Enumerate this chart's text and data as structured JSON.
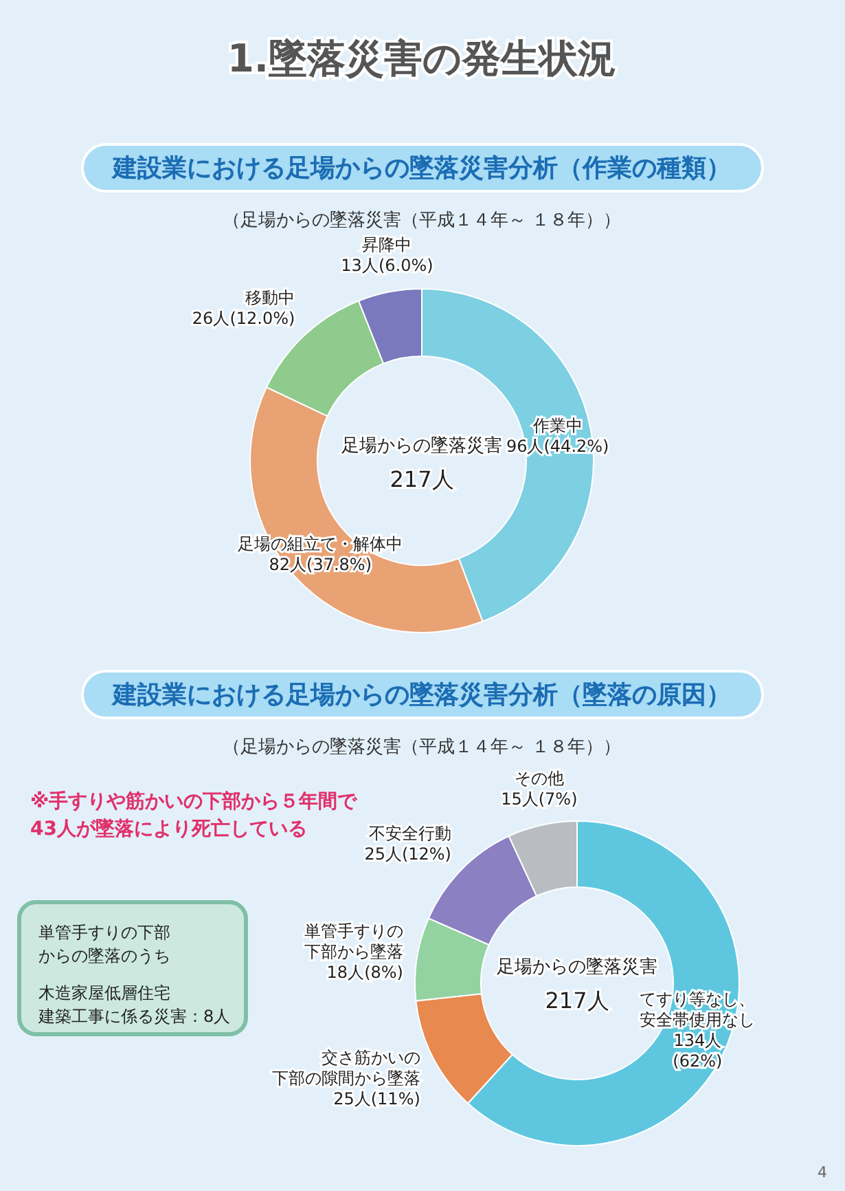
{
  "chart_data": [
    {
      "type": "donut",
      "title": "建設業における足場からの墜落災害分析（作業の種類）",
      "subtitle": "（足場からの墜落災害（平成１４年～ １８年））",
      "categories": [
        "作業中",
        "足場の組立て・解体中",
        "移動中",
        "昇降中"
      ],
      "values": [
        96,
        82,
        26,
        13
      ],
      "colors": [
        "#7dcfe2",
        "#e8a274",
        "#8ecb8c",
        "#7b79bd"
      ],
      "value_labels": [
        "96人(44.2%)",
        "82人(37.8%)",
        "26人(12.0%)",
        "13人(6.0%)"
      ],
      "annotations": [
        "1.墜落災害の発生状況",
        "足場からの墜落災害",
        "217人"
      ]
    },
    {
      "type": "donut",
      "title": "建設業における足場からの墜落災害分析（墜落の原因）",
      "subtitle": "（足場からの墜落災害（平成１４年～ １８年））",
      "categories": [
        "てすり等なし、安全帯使用なし",
        "交さ筋かいの下部の隙間から墜落",
        "単管手すりの下部から墜落",
        "不安全行動",
        "その他"
      ],
      "values": [
        134,
        25,
        18,
        25,
        15
      ],
      "colors": [
        "#5ec7df",
        "#e8894f",
        "#93d3a2",
        "#8b80c2",
        "#b9bdc1"
      ],
      "value_labels": [
        "134人\n(62%)",
        "25人(11%)",
        "18人(8%)",
        "25人(12%)",
        "15人(7%)"
      ],
      "annotations": [
        "足場からの墜落災害",
        "217人",
        "※手すりや筋かいの下部から５年間で43人が墜落により死亡している",
        "単管手すりの下部からの墜落のうち",
        "木造家屋低層住宅建築工事に係る災害：8人",
        "4"
      ]
    }
  ]
}
